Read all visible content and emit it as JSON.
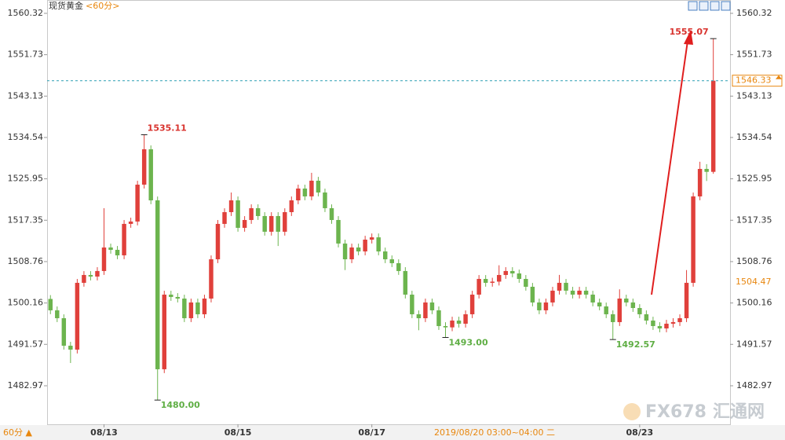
{
  "chart_data": {
    "type": "candlestick",
    "title": "现货黄金",
    "period": "<60分>",
    "period_button": "60分 ▲",
    "crosshair_label": "2019/08/20 03:00~04:00 二",
    "up_color": "#e0403b",
    "down_color": "#6cb44e",
    "open": [
      1501.0,
      1498.64,
      1497.0,
      1491.29,
      1490.48,
      1504.35,
      1505.98,
      1505.65,
      1506.8,
      1511.69,
      1511.2,
      1510.06,
      1516.59,
      1517.08,
      1524.74,
      1532.09,
      1521.48,
      1486.4,
      1501.9,
      1501.41,
      1501.08,
      1497.0,
      1500.27,
      1497.82,
      1501.08,
      1509.24,
      1516.59,
      1519.03,
      1521.48,
      1515.77,
      1517.4,
      1519.85,
      1518.22,
      1514.96,
      1518.22,
      1514.96,
      1519.03,
      1521.48,
      1523.93,
      1522.3,
      1525.56,
      1523.11,
      1519.85,
      1517.4,
      1512.51,
      1509.24,
      1511.69,
      1510.87,
      1513.32,
      1513.8,
      1510.87,
      1509.24,
      1508.43,
      1506.8,
      1501.9,
      1497.82,
      1497.0,
      1500.27,
      1498.64,
      1495.37,
      1495.1,
      1496.51,
      1495.86,
      1497.82,
      1501.9,
      1505.16,
      1504.35,
      1504.6,
      1505.98,
      1506.8,
      1506.3,
      1505.16,
      1503.53,
      1500.27,
      1498.64,
      1500.27,
      1502.72,
      1504.35,
      1502.72,
      1501.9,
      1502.72,
      1501.9,
      1500.27,
      1499.45,
      1497.82,
      1496.19,
      1501.08,
      1500.27,
      1499.12,
      1497.82,
      1496.51,
      1495.37,
      1494.88,
      1495.86,
      1496.19,
      1497.0,
      1504.35,
      1522.3,
      1528.01,
      1527.4
    ],
    "high": [
      1501.8,
      1499.44,
      1497.8,
      1492.09,
      1505.15,
      1506.78,
      1506.78,
      1507.6,
      1519.85,
      1512.49,
      1512.0,
      1517.39,
      1517.88,
      1525.54,
      1535.11,
      1532.89,
      1522.28,
      1502.7,
      1502.7,
      1502.21,
      1501.88,
      1501.07,
      1501.07,
      1501.88,
      1510.04,
      1517.39,
      1519.83,
      1523.11,
      1522.28,
      1518.2,
      1520.65,
      1520.65,
      1519.02,
      1519.02,
      1519.02,
      1519.83,
      1522.28,
      1524.73,
      1524.73,
      1527.2,
      1526.36,
      1523.91,
      1520.65,
      1518.2,
      1513.31,
      1512.49,
      1512.49,
      1514.12,
      1514.6,
      1514.6,
      1511.67,
      1510.04,
      1509.23,
      1507.6,
      1502.7,
      1498.62,
      1501.07,
      1501.07,
      1499.44,
      1496.17,
      1497.31,
      1497.31,
      1498.62,
      1502.7,
      1505.96,
      1505.96,
      1505.4,
      1508.0,
      1507.6,
      1507.6,
      1507.1,
      1505.96,
      1504.33,
      1501.07,
      1501.07,
      1503.52,
      1506.0,
      1505.15,
      1503.52,
      1503.52,
      1503.52,
      1502.7,
      1501.07,
      1500.25,
      1498.62,
      1503.0,
      1501.88,
      1501.07,
      1499.92,
      1498.62,
      1497.31,
      1496.17,
      1496.66,
      1497.0,
      1497.8,
      1507.0,
      1523.1,
      1529.5,
      1529.0,
      1555.07
    ],
    "low": [
      1497.84,
      1496.2,
      1490.49,
      1487.7,
      1489.68,
      1503.55,
      1504.85,
      1504.85,
      1506.0,
      1510.4,
      1509.26,
      1509.26,
      1515.79,
      1516.28,
      1523.94,
      1520.68,
      1480.0,
      1485.6,
      1500.61,
      1500.28,
      1496.2,
      1496.2,
      1497.02,
      1497.02,
      1500.28,
      1508.44,
      1515.79,
      1518.23,
      1514.97,
      1514.97,
      1516.6,
      1517.42,
      1514.16,
      1514.16,
      1512.0,
      1514.16,
      1518.23,
      1520.68,
      1521.5,
      1521.5,
      1522.31,
      1519.05,
      1516.6,
      1511.71,
      1507.0,
      1508.44,
      1510.07,
      1510.07,
      1512.52,
      1510.07,
      1508.44,
      1507.63,
      1506.0,
      1501.1,
      1497.02,
      1494.5,
      1496.2,
      1497.84,
      1494.57,
      1493.0,
      1494.3,
      1495.06,
      1495.06,
      1497.02,
      1501.1,
      1503.55,
      1503.55,
      1503.8,
      1505.18,
      1505.5,
      1504.36,
      1502.73,
      1499.47,
      1497.84,
      1497.84,
      1499.47,
      1501.92,
      1501.92,
      1501.1,
      1501.1,
      1501.1,
      1499.47,
      1498.65,
      1497.02,
      1492.57,
      1495.39,
      1499.47,
      1498.32,
      1497.02,
      1495.71,
      1494.57,
      1494.08,
      1494.08,
      1495.06,
      1495.39,
      1496.2,
      1503.55,
      1521.5,
      1525.5,
      1527.0
    ],
    "close": [
      1498.64,
      1497.0,
      1491.29,
      1490.48,
      1504.35,
      1505.98,
      1505.65,
      1506.8,
      1511.69,
      1511.2,
      1510.06,
      1516.59,
      1517.08,
      1524.74,
      1532.09,
      1521.48,
      1486.4,
      1501.9,
      1501.41,
      1501.08,
      1497.0,
      1500.27,
      1497.82,
      1501.08,
      1509.24,
      1516.59,
      1519.03,
      1521.48,
      1515.77,
      1517.4,
      1519.85,
      1518.22,
      1514.96,
      1518.22,
      1514.96,
      1519.03,
      1521.48,
      1523.93,
      1522.3,
      1525.56,
      1523.11,
      1519.85,
      1517.4,
      1512.51,
      1509.24,
      1511.69,
      1510.87,
      1513.32,
      1513.8,
      1510.87,
      1509.24,
      1508.43,
      1506.8,
      1501.9,
      1497.82,
      1497.0,
      1500.27,
      1498.64,
      1495.37,
      1495.1,
      1496.51,
      1495.86,
      1497.82,
      1501.9,
      1505.16,
      1504.35,
      1504.6,
      1505.98,
      1506.8,
      1506.3,
      1505.16,
      1503.53,
      1500.27,
      1498.64,
      1500.27,
      1502.72,
      1504.35,
      1502.72,
      1501.9,
      1502.72,
      1501.9,
      1500.27,
      1499.45,
      1497.82,
      1496.19,
      1501.08,
      1500.27,
      1499.12,
      1497.82,
      1496.51,
      1495.37,
      1494.88,
      1495.86,
      1496.19,
      1497.0,
      1504.35,
      1522.3,
      1528.01,
      1527.4,
      1546.33
    ],
    "xlim": [
      -0.5,
      101.5
    ],
    "xticks": [
      {
        "value": 8,
        "label": "08/13"
      },
      {
        "value": 28,
        "label": "08/15"
      },
      {
        "value": 48,
        "label": "08/17"
      },
      {
        "value": 88,
        "label": "08/23"
      }
    ],
    "ylim": [
      1474.97,
      1563.09
    ],
    "yticks": [
      1560.32,
      1551.73,
      1543.13,
      1534.54,
      1525.95,
      1517.35,
      1508.76,
      1500.16,
      1491.57,
      1482.97
    ],
    "last_price": 1546.33,
    "reference_price": 1504.47,
    "annotations": [
      {
        "x": 14,
        "value": 1535.11,
        "kind": "high"
      },
      {
        "x": 16,
        "value": 1480,
        "label": "1480.00",
        "kind": "low"
      },
      {
        "x": 59,
        "value": 1493,
        "label": "1493.00",
        "kind": "low"
      },
      {
        "x": 84,
        "value": 1492.57,
        "kind": "low"
      },
      {
        "x": 99,
        "value": 1555.07,
        "kind": "high"
      }
    ]
  },
  "watermark": {
    "latin": "FX678",
    "chinese": "汇通网"
  }
}
